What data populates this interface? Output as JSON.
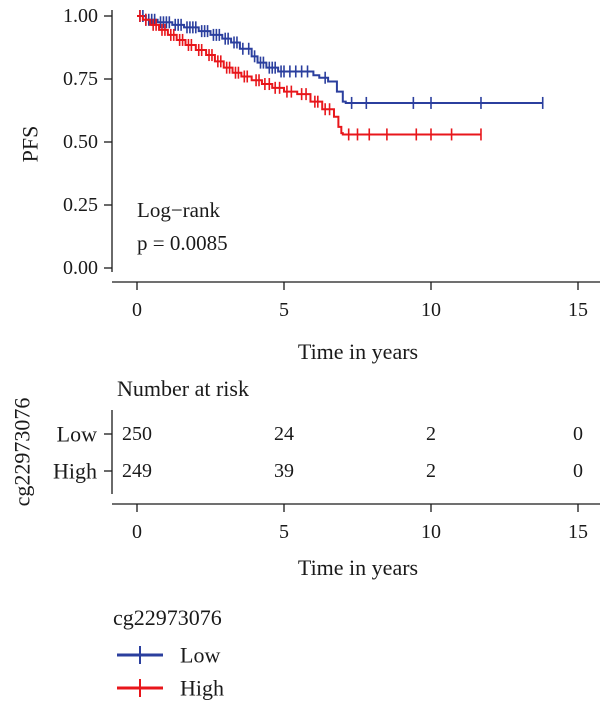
{
  "chart_data": [
    {
      "type": "line",
      "subtype": "kaplan-meier",
      "ylabel": "PFS",
      "xlabel": "Time in years",
      "xlim": [
        -1.2,
        15.6
      ],
      "ylim": [
        -0.04,
        1.02
      ],
      "x_ticks": [
        "0",
        "5",
        "10",
        "15"
      ],
      "y_ticks": [
        "0.00",
        "0.25",
        "0.50",
        "0.75",
        "1.00"
      ],
      "annotation": [
        "Log−rank",
        "p = 0.0085"
      ],
      "series": [
        {
          "name": "Low",
          "color": "#2b3f9e",
          "steps": [
            [
              0,
              1.0
            ],
            [
              0.3,
              0.985
            ],
            [
              0.7,
              0.975
            ],
            [
              1.2,
              0.965
            ],
            [
              1.6,
              0.955
            ],
            [
              2.1,
              0.94
            ],
            [
              2.5,
              0.925
            ],
            [
              2.9,
              0.91
            ],
            [
              3.2,
              0.895
            ],
            [
              3.5,
              0.87
            ],
            [
              3.9,
              0.84
            ],
            [
              4.1,
              0.815
            ],
            [
              4.4,
              0.795
            ],
            [
              4.8,
              0.78
            ],
            [
              6.0,
              0.765
            ],
            [
              6.2,
              0.755
            ],
            [
              6.5,
              0.74
            ],
            [
              6.8,
              0.7
            ],
            [
              7.0,
              0.66
            ],
            [
              7.1,
              0.655
            ],
            [
              13.8,
              0.655
            ]
          ],
          "censor_x": [
            0.1,
            0.2,
            0.3,
            0.4,
            0.5,
            0.6,
            0.8,
            0.9,
            1.0,
            1.1,
            1.3,
            1.4,
            1.5,
            1.7,
            1.8,
            1.9,
            2.0,
            2.2,
            2.3,
            2.4,
            2.6,
            2.7,
            2.8,
            3.0,
            3.1,
            3.3,
            3.4,
            3.6,
            3.8,
            4.0,
            4.2,
            4.3,
            4.5,
            4.6,
            4.7,
            4.9,
            5.0,
            5.2,
            5.4,
            5.6,
            5.8,
            6.4,
            7.3,
            7.8,
            9.4,
            10.0,
            11.7,
            13.8
          ]
        },
        {
          "name": "High",
          "color": "#e8161b",
          "steps": [
            [
              0,
              1.0
            ],
            [
              0.2,
              0.985
            ],
            [
              0.45,
              0.965
            ],
            [
              0.75,
              0.945
            ],
            [
              1.05,
              0.925
            ],
            [
              1.35,
              0.905
            ],
            [
              1.65,
              0.885
            ],
            [
              2.0,
              0.865
            ],
            [
              2.35,
              0.845
            ],
            [
              2.65,
              0.82
            ],
            [
              2.95,
              0.795
            ],
            [
              3.25,
              0.775
            ],
            [
              3.55,
              0.76
            ],
            [
              3.9,
              0.745
            ],
            [
              4.25,
              0.73
            ],
            [
              4.6,
              0.715
            ],
            [
              5.0,
              0.7
            ],
            [
              5.45,
              0.69
            ],
            [
              5.9,
              0.66
            ],
            [
              6.3,
              0.63
            ],
            [
              6.7,
              0.6
            ],
            [
              6.85,
              0.56
            ],
            [
              6.95,
              0.535
            ],
            [
              7.0,
              0.53
            ],
            [
              11.7,
              0.53
            ]
          ],
          "censor_x": [
            0.1,
            0.3,
            0.55,
            0.65,
            0.85,
            0.95,
            1.15,
            1.25,
            1.45,
            1.55,
            1.75,
            1.85,
            2.1,
            2.2,
            2.45,
            2.55,
            2.75,
            2.85,
            3.05,
            3.15,
            3.35,
            3.45,
            3.65,
            3.75,
            4.05,
            4.15,
            4.35,
            4.5,
            4.7,
            4.85,
            5.1,
            5.25,
            5.6,
            5.75,
            6.05,
            6.15,
            6.4,
            6.55,
            7.2,
            7.5,
            7.9,
            8.5,
            9.5,
            10.0,
            10.7,
            11.7
          ]
        }
      ]
    },
    {
      "type": "table",
      "title": "Number at risk",
      "ylabel": "cg22973076",
      "xlabel": "Time in years",
      "x_ticks": [
        "0",
        "5",
        "10",
        "15"
      ],
      "rows": [
        {
          "name": "Low",
          "values": [
            "250",
            "24",
            "2",
            "0"
          ]
        },
        {
          "name": "High",
          "values": [
            "249",
            "39",
            "2",
            "0"
          ]
        }
      ]
    }
  ],
  "legend": {
    "title": "cg22973076",
    "items": [
      {
        "label": "Low",
        "color": "#2b3f9e"
      },
      {
        "label": "High",
        "color": "#e8161b"
      }
    ]
  }
}
